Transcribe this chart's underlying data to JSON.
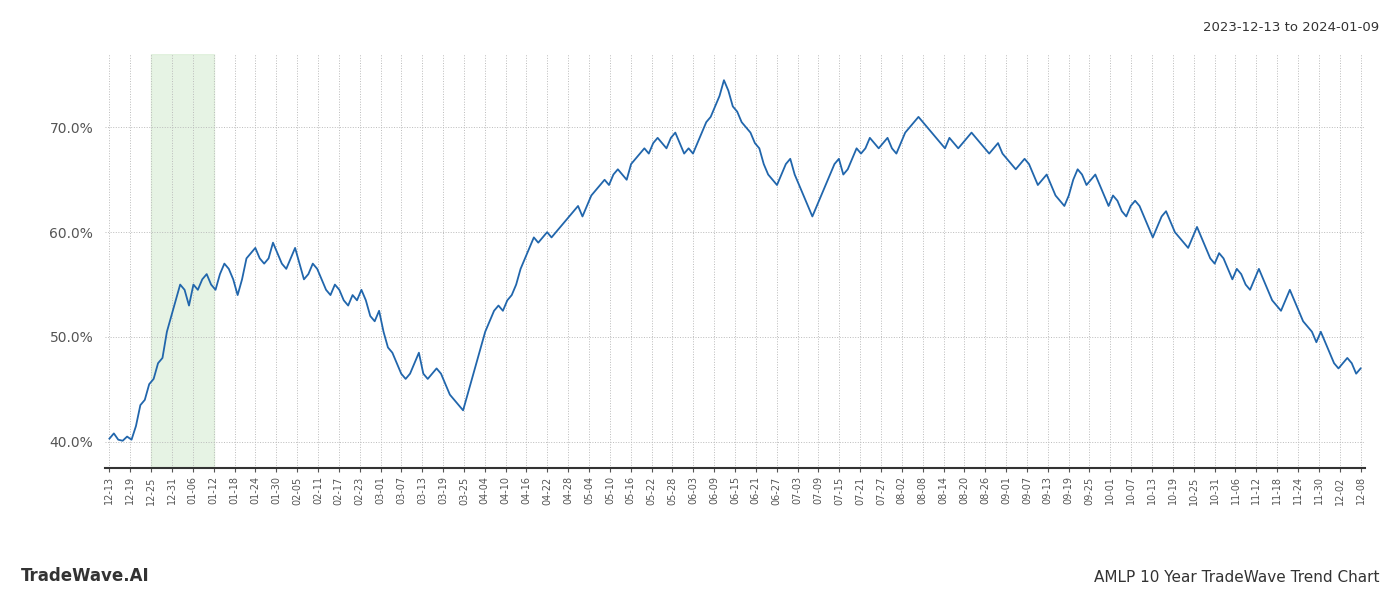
{
  "title_top_right": "2023-12-13 to 2024-01-09",
  "title_bottom_left": "TradeWave.AI",
  "title_bottom_right": "AMLP 10 Year TradeWave Trend Chart",
  "line_color": "#2166ac",
  "line_width": 1.3,
  "bg_color": "#ffffff",
  "grid_color": "#bbbbbb",
  "shade_color": "#d6ecd2",
  "shade_alpha": 0.6,
  "ylim": [
    37.5,
    77
  ],
  "yticks": [
    40,
    50,
    60,
    70
  ],
  "ytick_labels": [
    "40.0%",
    "50.0%",
    "60.0%",
    "70.0%"
  ],
  "xtick_labels": [
    "12-13",
    "12-19",
    "12-25",
    "12-31",
    "01-06",
    "01-12",
    "01-18",
    "01-24",
    "01-30",
    "02-05",
    "02-11",
    "02-17",
    "02-23",
    "03-01",
    "03-07",
    "03-13",
    "03-19",
    "03-25",
    "04-04",
    "04-10",
    "04-16",
    "04-22",
    "04-28",
    "05-04",
    "05-10",
    "05-16",
    "05-22",
    "05-28",
    "06-03",
    "06-09",
    "06-15",
    "06-21",
    "06-27",
    "07-03",
    "07-09",
    "07-15",
    "07-21",
    "07-27",
    "08-02",
    "08-08",
    "08-14",
    "08-20",
    "08-26",
    "09-01",
    "09-07",
    "09-13",
    "09-19",
    "09-25",
    "10-01",
    "10-07",
    "10-13",
    "10-19",
    "10-25",
    "10-31",
    "11-06",
    "11-12",
    "11-18",
    "11-24",
    "11-30",
    "12-02",
    "12-08"
  ],
  "shade_x_start_label": "12-25",
  "shade_x_end_label": "01-12",
  "values": [
    40.3,
    40.8,
    40.2,
    40.1,
    40.5,
    40.2,
    41.5,
    43.5,
    44.0,
    45.5,
    46.0,
    47.5,
    48.0,
    50.5,
    52.0,
    53.5,
    55.0,
    54.5,
    53.0,
    55.0,
    54.5,
    55.5,
    56.0,
    55.0,
    54.5,
    56.0,
    57.0,
    56.5,
    55.5,
    54.0,
    55.5,
    57.5,
    58.0,
    58.5,
    57.5,
    57.0,
    57.5,
    59.0,
    58.0,
    57.0,
    56.5,
    57.5,
    58.5,
    57.0,
    55.5,
    56.0,
    57.0,
    56.5,
    55.5,
    54.5,
    54.0,
    55.0,
    54.5,
    53.5,
    53.0,
    54.0,
    53.5,
    54.5,
    53.5,
    52.0,
    51.5,
    52.5,
    50.5,
    49.0,
    48.5,
    47.5,
    46.5,
    46.0,
    46.5,
    47.5,
    48.5,
    46.5,
    46.0,
    46.5,
    47.0,
    46.5,
    45.5,
    44.5,
    44.0,
    43.5,
    43.0,
    44.5,
    46.0,
    47.5,
    49.0,
    50.5,
    51.5,
    52.5,
    53.0,
    52.5,
    53.5,
    54.0,
    55.0,
    56.5,
    57.5,
    58.5,
    59.5,
    59.0,
    59.5,
    60.0,
    59.5,
    60.0,
    60.5,
    61.0,
    61.5,
    62.0,
    62.5,
    61.5,
    62.5,
    63.5,
    64.0,
    64.5,
    65.0,
    64.5,
    65.5,
    66.0,
    65.5,
    65.0,
    66.5,
    67.0,
    67.5,
    68.0,
    67.5,
    68.5,
    69.0,
    68.5,
    68.0,
    69.0,
    69.5,
    68.5,
    67.5,
    68.0,
    67.5,
    68.5,
    69.5,
    70.5,
    71.0,
    72.0,
    73.0,
    74.5,
    73.5,
    72.0,
    71.5,
    70.5,
    70.0,
    69.5,
    68.5,
    68.0,
    66.5,
    65.5,
    65.0,
    64.5,
    65.5,
    66.5,
    67.0,
    65.5,
    64.5,
    63.5,
    62.5,
    61.5,
    62.5,
    63.5,
    64.5,
    65.5,
    66.5,
    67.0,
    65.5,
    66.0,
    67.0,
    68.0,
    67.5,
    68.0,
    69.0,
    68.5,
    68.0,
    68.5,
    69.0,
    68.0,
    67.5,
    68.5,
    69.5,
    70.0,
    70.5,
    71.0,
    70.5,
    70.0,
    69.5,
    69.0,
    68.5,
    68.0,
    69.0,
    68.5,
    68.0,
    68.5,
    69.0,
    69.5,
    69.0,
    68.5,
    68.0,
    67.5,
    68.0,
    68.5,
    67.5,
    67.0,
    66.5,
    66.0,
    66.5,
    67.0,
    66.5,
    65.5,
    64.5,
    65.0,
    65.5,
    64.5,
    63.5,
    63.0,
    62.5,
    63.5,
    65.0,
    66.0,
    65.5,
    64.5,
    65.0,
    65.5,
    64.5,
    63.5,
    62.5,
    63.5,
    63.0,
    62.0,
    61.5,
    62.5,
    63.0,
    62.5,
    61.5,
    60.5,
    59.5,
    60.5,
    61.5,
    62.0,
    61.0,
    60.0,
    59.5,
    59.0,
    58.5,
    59.5,
    60.5,
    59.5,
    58.5,
    57.5,
    57.0,
    58.0,
    57.5,
    56.5,
    55.5,
    56.5,
    56.0,
    55.0,
    54.5,
    55.5,
    56.5,
    55.5,
    54.5,
    53.5,
    53.0,
    52.5,
    53.5,
    54.5,
    53.5,
    52.5,
    51.5,
    51.0,
    50.5,
    49.5,
    50.5,
    49.5,
    48.5,
    47.5,
    47.0,
    47.5,
    48.0,
    47.5,
    46.5,
    47.0
  ]
}
